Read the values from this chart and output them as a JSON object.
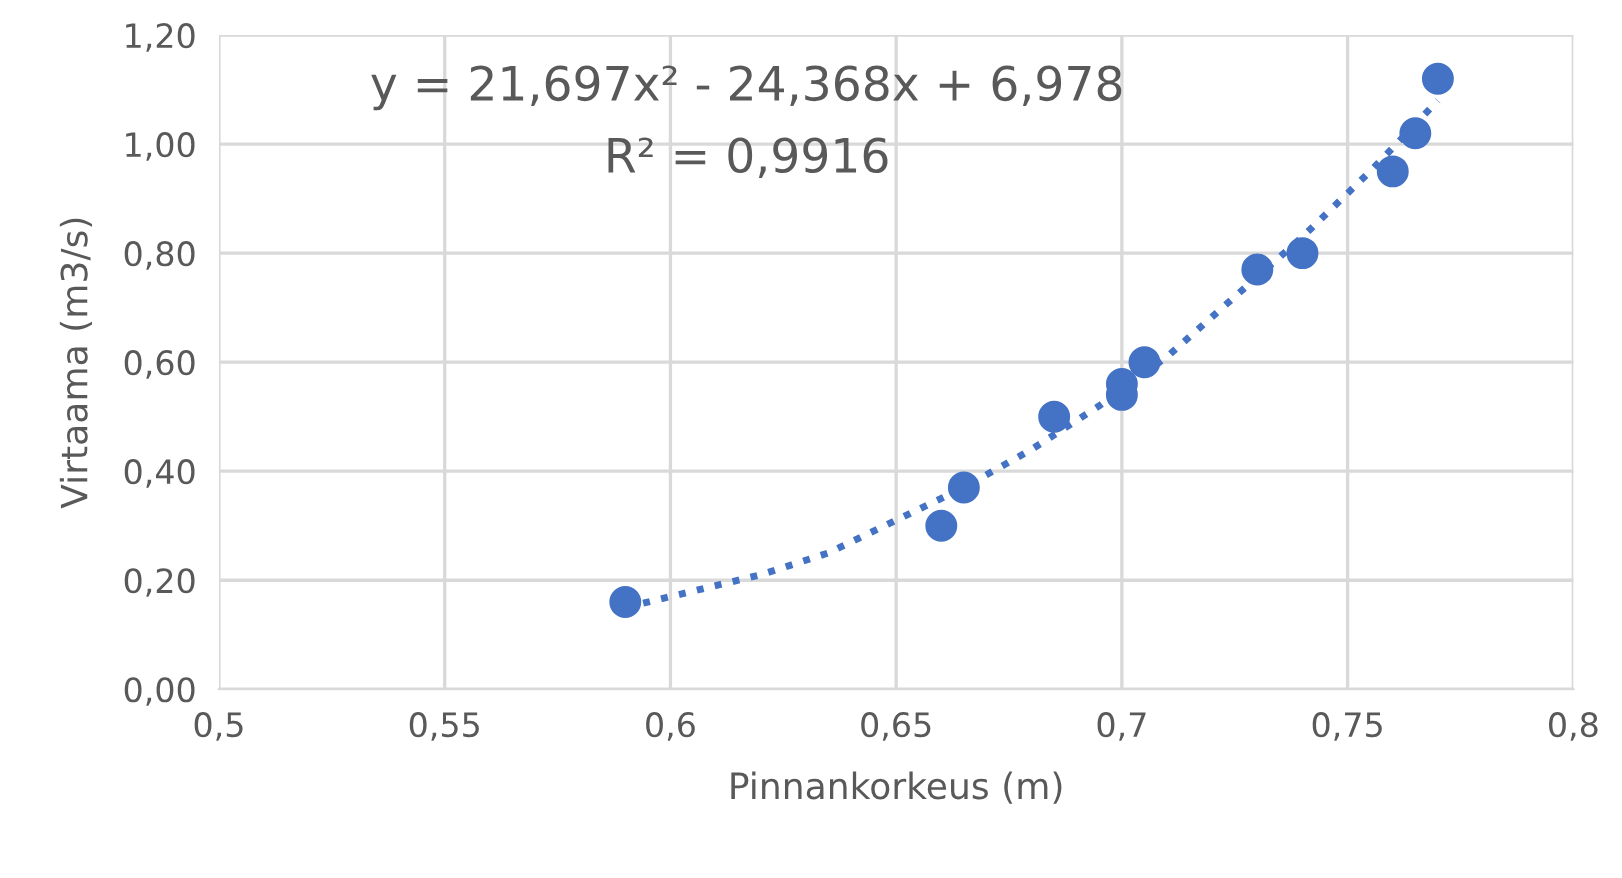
{
  "chart_data": {
    "type": "scatter",
    "xlabel": "Pinnankorkeus (m)",
    "ylabel": "Virtaama (m3/s)",
    "series": [
      {
        "type": "scatter",
        "color": "#4472c4",
        "marker": "circle",
        "x": [
          0.59,
          0.66,
          0.665,
          0.685,
          0.7,
          0.7,
          0.705,
          0.73,
          0.74,
          0.76,
          0.765,
          0.77
        ],
        "values": [
          0.16,
          0.3,
          0.37,
          0.5,
          0.54,
          0.56,
          0.6,
          0.77,
          0.8,
          0.95,
          1.02,
          1.12
        ]
      },
      {
        "type": "line",
        "color": "#4472c4",
        "line_style": "dotted",
        "x": [
          0.59,
          0.605,
          0.62,
          0.635,
          0.65,
          0.665,
          0.68,
          0.695,
          0.71,
          0.725,
          0.74,
          0.755,
          0.77
        ],
        "values": [
          0.15,
          0.18,
          0.21,
          0.25,
          0.31,
          0.37,
          0.44,
          0.52,
          0.61,
          0.72,
          0.83,
          0.95,
          1.08
        ]
      }
    ],
    "xlim": [
      0.5,
      0.8
    ],
    "ylim": [
      0,
      1.2
    ],
    "xticks": [
      {
        "value": 0.5,
        "label": "0,5"
      },
      {
        "value": 0.55,
        "label": "0,55"
      },
      {
        "value": 0.6,
        "label": "0,6"
      },
      {
        "value": 0.65,
        "label": "0,65"
      },
      {
        "value": 0.7,
        "label": "0,7"
      },
      {
        "value": 0.75,
        "label": "0,75"
      },
      {
        "value": 0.8,
        "label": "0,8"
      }
    ],
    "yticks": [
      {
        "value": 0,
        "label": "0,00"
      },
      {
        "value": 0.2,
        "label": "0,20"
      },
      {
        "value": 0.4,
        "label": "0,40"
      },
      {
        "value": 0.6,
        "label": "0,60"
      },
      {
        "value": 0.8,
        "label": "0,80"
      },
      {
        "value": 1.0,
        "label": "1,00"
      },
      {
        "value": 1.2,
        "label": "1,20"
      }
    ],
    "grid": true,
    "annotations": [
      "y = 21,697x² - 24,368x + 6,978",
      "R² = 0,9916"
    ]
  }
}
